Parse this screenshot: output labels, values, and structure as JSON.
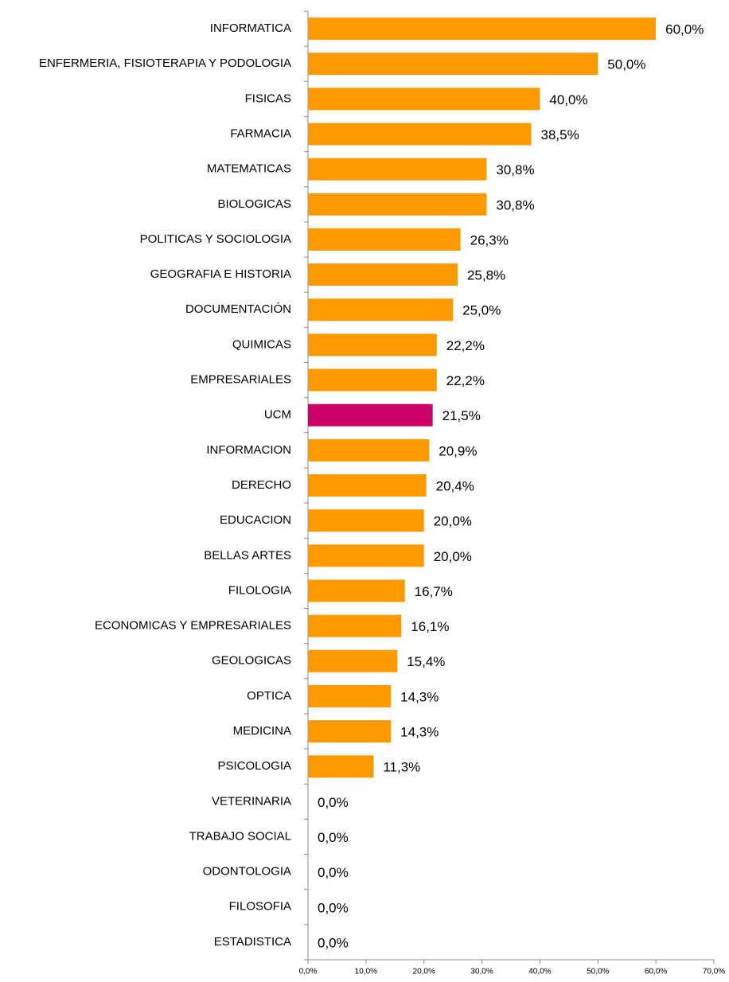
{
  "chart_data": {
    "type": "hbar",
    "categories": [
      "INFORMATICA",
      "ENFERMERIA, FISIOTERAPIA Y PODOLOGIA",
      "FISICAS",
      "FARMACIA",
      "MATEMATICAS",
      "BIOLOGICAS",
      "POLITICAS Y SOCIOLOGIA",
      "GEOGRAFIA E HISTORIA",
      "DOCUMENTACIÓN",
      "QUIMICAS",
      "EMPRESARIALES",
      "UCM",
      "INFORMACION",
      "DERECHO",
      "EDUCACION",
      "BELLAS ARTES",
      "FILOLOGIA",
      "ECONOMICAS Y EMPRESARIALES",
      "GEOLOGICAS",
      "OPTICA",
      "MEDICINA",
      "PSICOLOGIA",
      "VETERINARIA",
      "TRABAJO SOCIAL",
      "ODONTOLOGIA",
      "FILOSOFIA",
      "ESTADISTICA"
    ],
    "values": [
      60.0,
      50.0,
      40.0,
      38.5,
      30.8,
      30.8,
      26.3,
      25.8,
      25.0,
      22.2,
      22.2,
      21.5,
      20.9,
      20.4,
      20.0,
      20.0,
      16.7,
      16.1,
      15.4,
      14.3,
      14.3,
      11.3,
      0.0,
      0.0,
      0.0,
      0.0,
      0.0
    ],
    "value_labels": [
      "60,0%",
      "50,0%",
      "40,0%",
      "38,5%",
      "30,8%",
      "30,8%",
      "26,3%",
      "25,8%",
      "25,0%",
      "22,2%",
      "22,2%",
      "21,5%",
      "20,9%",
      "20,4%",
      "20,0%",
      "20,0%",
      "16,7%",
      "16,1%",
      "15,4%",
      "14,3%",
      "14,3%",
      "11,3%",
      "0,0%",
      "0,0%",
      "0,0%",
      "0,0%",
      "0,0%"
    ],
    "colors": [
      "#ff9900",
      "#ff9900",
      "#ff9900",
      "#ff9900",
      "#ff9900",
      "#ff9900",
      "#ff9900",
      "#ff9900",
      "#ff9900",
      "#ff9900",
      "#ff9900",
      "#cc0066",
      "#ff9900",
      "#ff9900",
      "#ff9900",
      "#ff9900",
      "#ff9900",
      "#ff9900",
      "#ff9900",
      "#ff9900",
      "#ff9900",
      "#ff9900",
      "#ff9900",
      "#ff9900",
      "#ff9900",
      "#ff9900",
      "#ff9900"
    ],
    "xlim": [
      0,
      70
    ],
    "xticks": [
      {
        "value": 0,
        "label": "0,0%"
      },
      {
        "value": 10,
        "label": "10,0%"
      },
      {
        "value": 20,
        "label": "20,0%"
      },
      {
        "value": 30,
        "label": "30,0%"
      },
      {
        "value": 40,
        "label": "40,0%"
      },
      {
        "value": 50,
        "label": "50,0%"
      },
      {
        "value": 60,
        "label": "60,0%"
      },
      {
        "value": 70,
        "label": "70,0%"
      }
    ]
  }
}
